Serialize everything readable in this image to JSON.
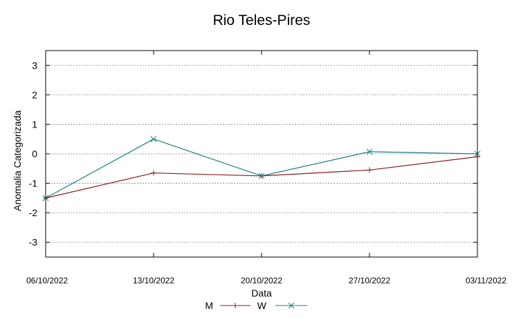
{
  "chart_data": {
    "type": "line",
    "title": "Rio Teles-Pires",
    "xlabel": "Data",
    "ylabel": "Anomalia Categorizada",
    "categories": [
      "06/10/2022",
      "13/10/2022",
      "20/10/2022",
      "27/10/2022",
      "03/11/2022"
    ],
    "ylim": [
      -3.5,
      3.5
    ],
    "yticks": [
      "3",
      "2",
      "1",
      "0",
      "-1",
      "-2",
      "-3"
    ],
    "grid": true,
    "legend_position": "bottom-center",
    "series": [
      {
        "name": "M",
        "values": [
          -1.5,
          -0.65,
          -0.75,
          -0.55,
          -0.1
        ],
        "color": "#8b1a1a",
        "marker": "plus"
      },
      {
        "name": "W",
        "values": [
          -1.5,
          0.5,
          -0.75,
          0.07,
          0.0
        ],
        "color": "#1a7d80",
        "marker": "cross"
      }
    ]
  }
}
